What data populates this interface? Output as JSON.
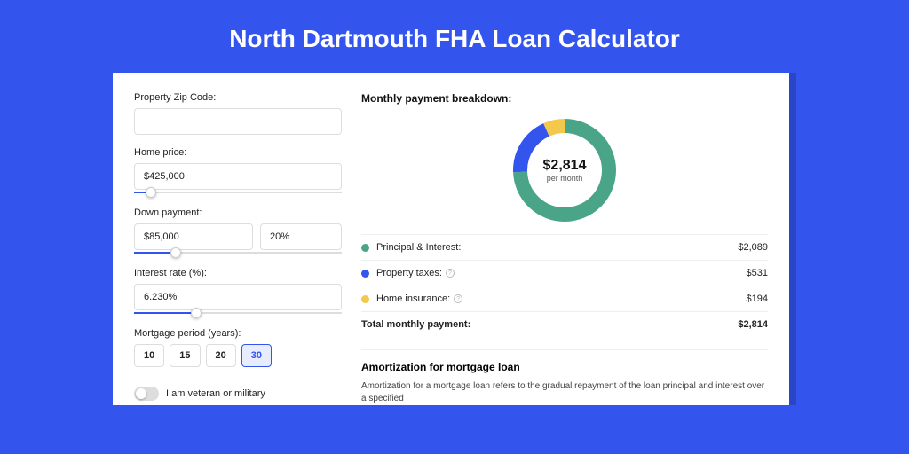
{
  "page": {
    "title": "North Dartmouth FHA Loan Calculator",
    "bg_color": "#3355ee",
    "card_shadow_color": "#2a46c8"
  },
  "form": {
    "zip": {
      "label": "Property Zip Code:",
      "value": ""
    },
    "home_price": {
      "label": "Home price:",
      "value": "$425,000",
      "slider_pct": 8
    },
    "down_payment": {
      "label": "Down payment:",
      "amount": "$85,000",
      "pct": "20%",
      "slider_pct": 20
    },
    "interest": {
      "label": "Interest rate (%):",
      "value": "6.230%",
      "slider_pct": 30
    },
    "period": {
      "label": "Mortgage period (years):",
      "options": [
        "10",
        "15",
        "20",
        "30"
      ],
      "selected_index": 3
    },
    "veteran": {
      "label": "I am veteran or military",
      "checked": false
    }
  },
  "breakdown": {
    "title": "Monthly payment breakdown:",
    "donut": {
      "amount": "$2,814",
      "sub": "per month",
      "type": "donut",
      "slices": [
        {
          "key": "principal_interest",
          "value": 2089,
          "color": "#4aa488"
        },
        {
          "key": "property_taxes",
          "value": 531,
          "color": "#3355ee"
        },
        {
          "key": "home_insurance",
          "value": 194,
          "color": "#f4c84a"
        }
      ],
      "stroke_width": 16,
      "radius": 50,
      "bg": "#ffffff"
    },
    "rows": [
      {
        "label": "Principal & Interest:",
        "value": "$2,089",
        "color": "#4aa488",
        "info": false
      },
      {
        "label": "Property taxes:",
        "value": "$531",
        "color": "#3355ee",
        "info": true
      },
      {
        "label": "Home insurance:",
        "value": "$194",
        "color": "#f4c84a",
        "info": true
      }
    ],
    "total": {
      "label": "Total monthly payment:",
      "value": "$2,814"
    }
  },
  "amortization": {
    "title": "Amortization for mortgage loan",
    "text": "Amortization for a mortgage loan refers to the gradual repayment of the loan principal and interest over a specified"
  }
}
